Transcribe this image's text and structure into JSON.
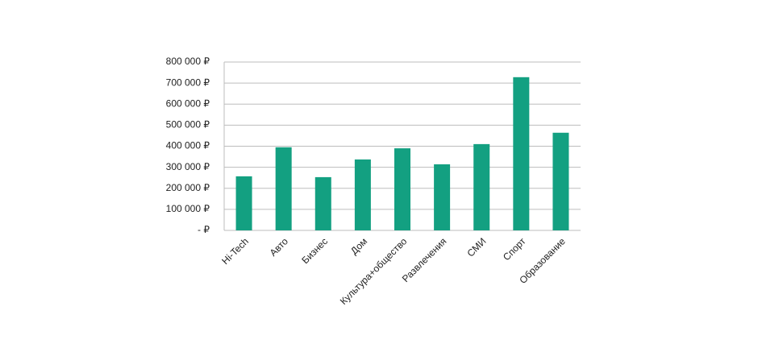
{
  "chart_data": {
    "type": "bar",
    "categories": [
      "Hi-Tech",
      "Авто",
      "Бизнес",
      "Дом",
      "Культура+общество",
      "Развлечения",
      "СМИ",
      "Спорт",
      "Образование"
    ],
    "values": [
      257000,
      395000,
      253000,
      337000,
      390000,
      314000,
      410000,
      728000,
      464000
    ],
    "color": "#13a081",
    "ylim": [
      0,
      800000
    ],
    "yticks": [
      {
        "value": 0,
        "label": "-   ₽"
      },
      {
        "value": 100000,
        "label": "100 000 ₽"
      },
      {
        "value": 200000,
        "label": "200 000 ₽"
      },
      {
        "value": 300000,
        "label": "300 000 ₽"
      },
      {
        "value": 400000,
        "label": "400 000 ₽"
      },
      {
        "value": 500000,
        "label": "500 000 ₽"
      },
      {
        "value": 600000,
        "label": "600 000 ₽"
      },
      {
        "value": 700000,
        "label": "700 000 ₽"
      },
      {
        "value": 800000,
        "label": "800 000 ₽"
      }
    ],
    "grid": true
  }
}
